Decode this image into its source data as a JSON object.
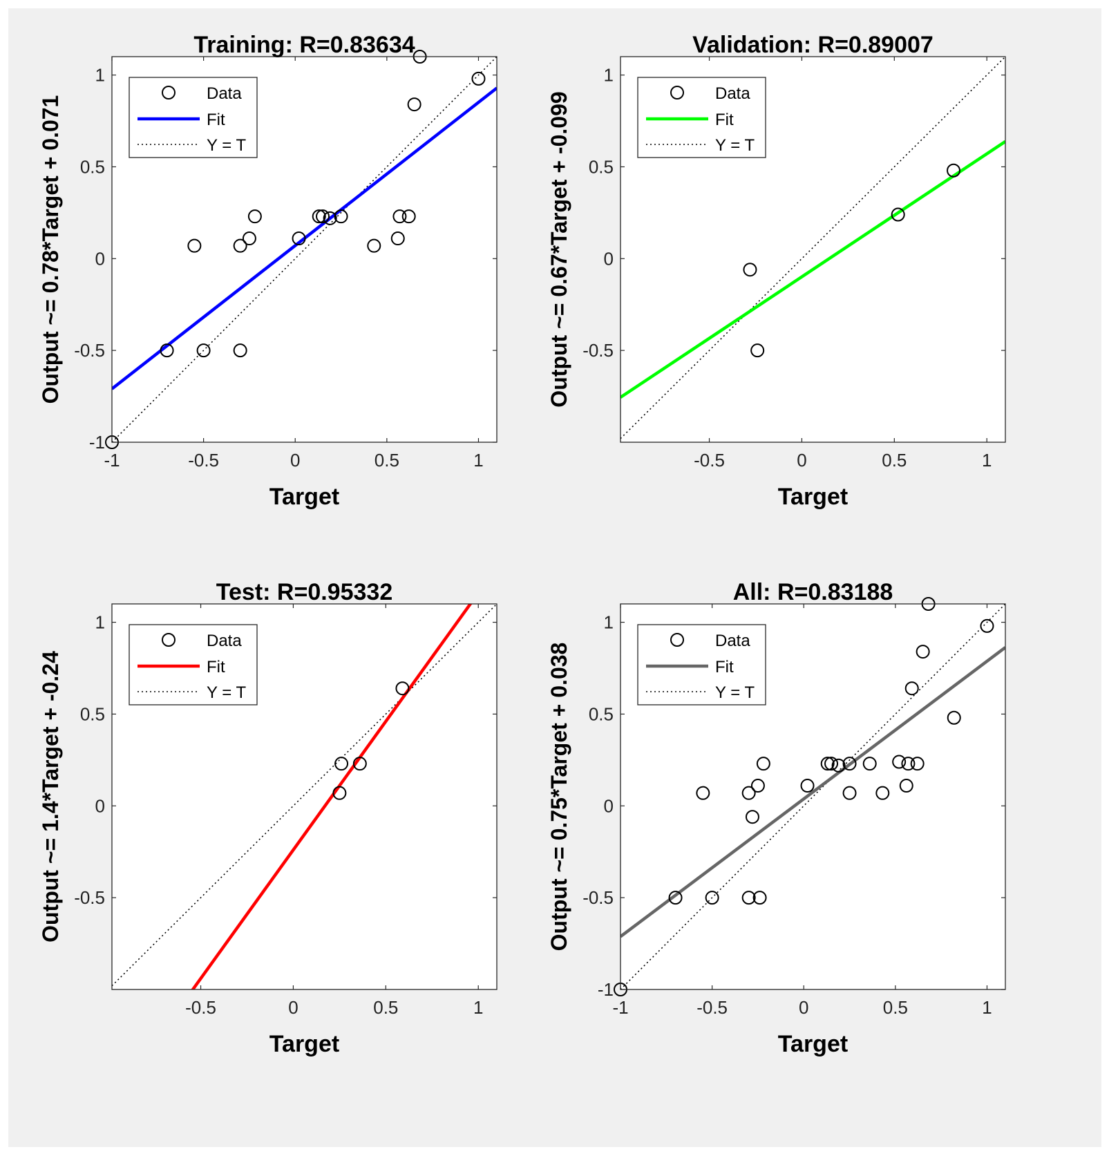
{
  "chart_data": [
    {
      "type": "scatter",
      "title": "Training: R=0.83634",
      "xlabel": "Target",
      "ylabel": "Output ~= 0.78*Target + 0.071",
      "xlim": [
        -1,
        1.1
      ],
      "ylim": [
        -1,
        1.1
      ],
      "xticks": [
        -1,
        -0.5,
        0,
        0.5,
        1
      ],
      "xtick_labels": [
        "-1",
        "-0.5",
        "0",
        "0.5",
        "1"
      ],
      "yticks": [
        -1,
        -0.5,
        0,
        0.5,
        1
      ],
      "ytick_labels": [
        "-1",
        "-0.5",
        "0",
        "0.5",
        "1"
      ],
      "fit": {
        "slope": 0.78,
        "intercept": 0.071,
        "color": "#0000ff"
      },
      "legend": {
        "position": "top-left",
        "entries": [
          "Data",
          "Fit",
          "Y = T"
        ]
      },
      "points": [
        [
          -1,
          -1
        ],
        [
          -0.7,
          -0.5
        ],
        [
          -0.5,
          -0.5
        ],
        [
          -0.3,
          -0.5
        ],
        [
          -0.55,
          0.07
        ],
        [
          -0.3,
          0.07
        ],
        [
          -0.25,
          0.11
        ],
        [
          -0.22,
          0.23
        ],
        [
          0.02,
          0.11
        ],
        [
          0.13,
          0.23
        ],
        [
          0.15,
          0.23
        ],
        [
          0.19,
          0.22
        ],
        [
          0.25,
          0.23
        ],
        [
          0.43,
          0.07
        ],
        [
          0.56,
          0.11
        ],
        [
          0.57,
          0.23
        ],
        [
          0.62,
          0.23
        ],
        [
          0.65,
          0.84
        ],
        [
          0.68,
          1.1
        ],
        [
          1.0,
          0.98
        ]
      ]
    },
    {
      "type": "scatter",
      "title": "Validation: R=0.89007",
      "xlabel": "Target",
      "ylabel": "Output ~= 0.67*Target + -0.099",
      "xlim": [
        -0.98,
        1.1
      ],
      "ylim": [
        -1,
        1.1
      ],
      "xticks": [
        -0.5,
        0,
        0.5,
        1
      ],
      "xtick_labels": [
        "-0.5",
        "0",
        "0.5",
        "1"
      ],
      "yticks": [
        -0.5,
        0,
        0.5,
        1
      ],
      "ytick_labels": [
        "-0.5",
        "0",
        "0.5",
        "1"
      ],
      "fit": {
        "slope": 0.67,
        "intercept": -0.099,
        "color": "#00ff00"
      },
      "legend": {
        "position": "top-left",
        "entries": [
          "Data",
          "Fit",
          "Y = T"
        ]
      },
      "points": [
        [
          -0.28,
          -0.06
        ],
        [
          -0.24,
          -0.5
        ],
        [
          0.52,
          0.24
        ],
        [
          0.82,
          0.48
        ]
      ]
    },
    {
      "type": "scatter",
      "title": "Test: R=0.95332",
      "xlabel": "Target",
      "ylabel": "Output ~= 1.4*Target + -0.24",
      "xlim": [
        -0.98,
        1.1
      ],
      "ylim": [
        -1,
        1.1
      ],
      "xticks": [
        -0.5,
        0,
        0.5,
        1
      ],
      "xtick_labels": [
        "-0.5",
        "0",
        "0.5",
        "1"
      ],
      "yticks": [
        -0.5,
        0,
        0.5,
        1
      ],
      "ytick_labels": [
        "-0.5",
        "0",
        "0.5",
        "1"
      ],
      "fit": {
        "slope": 1.4,
        "intercept": -0.24,
        "color": "#ff0000"
      },
      "legend": {
        "position": "top-left",
        "entries": [
          "Data",
          "Fit",
          "Y = T"
        ]
      },
      "points": [
        [
          0.25,
          0.07
        ],
        [
          0.26,
          0.23
        ],
        [
          0.36,
          0.23
        ],
        [
          0.59,
          0.64
        ]
      ]
    },
    {
      "type": "scatter",
      "title": "All: R=0.83188",
      "xlabel": "Target",
      "ylabel": "Output ~= 0.75*Target + 0.038",
      "xlim": [
        -1,
        1.1
      ],
      "ylim": [
        -1,
        1.1
      ],
      "xticks": [
        -1,
        -0.5,
        0,
        0.5,
        1
      ],
      "xtick_labels": [
        "-1",
        "-0.5",
        "0",
        "0.5",
        "1"
      ],
      "yticks": [
        -1,
        -0.5,
        0,
        0.5,
        1
      ],
      "ytick_labels": [
        "-1",
        "-0.5",
        "0",
        "0.5",
        "1"
      ],
      "fit": {
        "slope": 0.75,
        "intercept": 0.038,
        "color": "#666666"
      },
      "legend": {
        "position": "top-left",
        "entries": [
          "Data",
          "Fit",
          "Y = T"
        ]
      },
      "points": [
        [
          -1,
          -1
        ],
        [
          -0.7,
          -0.5
        ],
        [
          -0.5,
          -0.5
        ],
        [
          -0.3,
          -0.5
        ],
        [
          -0.24,
          -0.5
        ],
        [
          -0.28,
          -0.06
        ],
        [
          -0.55,
          0.07
        ],
        [
          -0.3,
          0.07
        ],
        [
          -0.25,
          0.11
        ],
        [
          -0.22,
          0.23
        ],
        [
          0.02,
          0.11
        ],
        [
          0.13,
          0.23
        ],
        [
          0.15,
          0.23
        ],
        [
          0.19,
          0.22
        ],
        [
          0.25,
          0.23
        ],
        [
          0.25,
          0.07
        ],
        [
          0.36,
          0.23
        ],
        [
          0.43,
          0.07
        ],
        [
          0.52,
          0.24
        ],
        [
          0.56,
          0.11
        ],
        [
          0.57,
          0.23
        ],
        [
          0.62,
          0.23
        ],
        [
          0.59,
          0.64
        ],
        [
          0.65,
          0.84
        ],
        [
          0.68,
          1.1
        ],
        [
          0.82,
          0.48
        ],
        [
          1.0,
          0.98
        ]
      ]
    }
  ]
}
